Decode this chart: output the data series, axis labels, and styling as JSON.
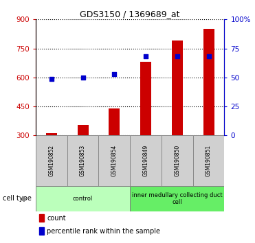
{
  "title": "GDS3150 / 1369689_at",
  "samples": [
    "GSM190852",
    "GSM190853",
    "GSM190854",
    "GSM190849",
    "GSM190850",
    "GSM190851"
  ],
  "counts": [
    310,
    355,
    440,
    680,
    790,
    850
  ],
  "percentile_ranks": [
    49,
    50,
    53,
    68,
    68,
    68
  ],
  "groups": [
    {
      "label": "control",
      "span": [
        0,
        3
      ],
      "color": "#bbffbb"
    },
    {
      "label": "inner medullary collecting duct\ncell",
      "span": [
        3,
        6
      ],
      "color": "#66ee66"
    }
  ],
  "bar_color": "#cc0000",
  "dot_color": "#0000cc",
  "ylim_left": [
    300,
    900
  ],
  "ylim_right": [
    0,
    100
  ],
  "yticks_left": [
    300,
    450,
    600,
    750,
    900
  ],
  "ytick_labels_left": [
    "300",
    "450",
    "600",
    "750",
    "900"
  ],
  "yticks_right": [
    0,
    25,
    50,
    75,
    100
  ],
  "ytick_labels_right": [
    "0",
    "25",
    "50",
    "75",
    "100%"
  ],
  "left_axis_color": "#cc0000",
  "right_axis_color": "#0000cc",
  "legend_count_label": "count",
  "legend_pct_label": "percentile rank within the sample",
  "cell_type_label": "cell type",
  "bar_width": 0.35,
  "dot_size": 25,
  "sample_box_color": "#d0d0d0",
  "sample_box_edge": "#888888",
  "figsize": [
    3.71,
    3.54
  ],
  "dpi": 100
}
